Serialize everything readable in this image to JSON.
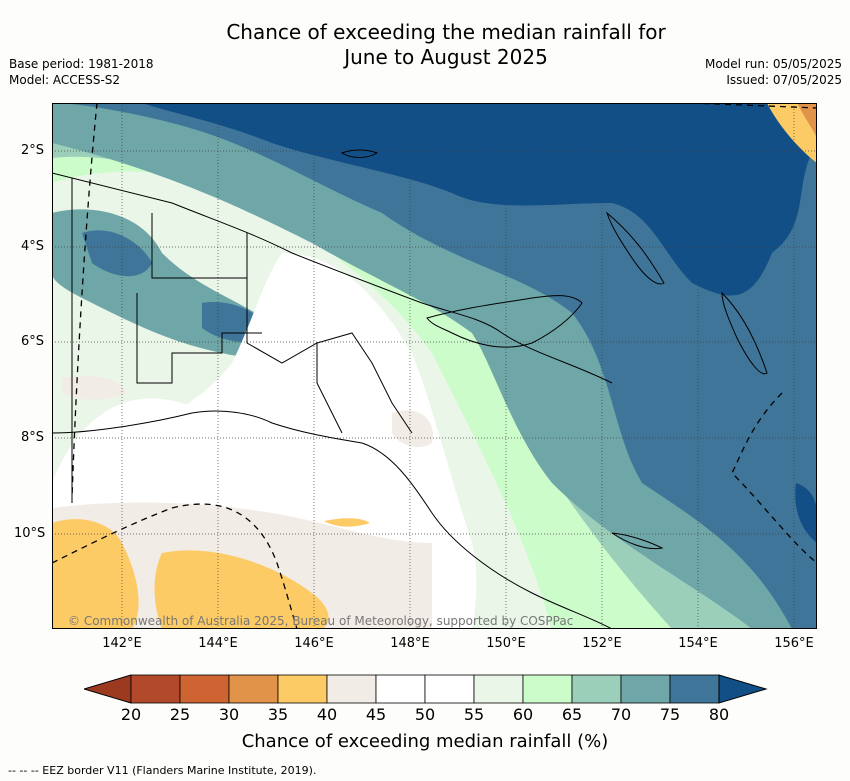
{
  "title_line1": "Chance of exceeding the median rainfall for",
  "title_line2": "June to August 2025",
  "meta_left": {
    "base_period": "Base period: 1981-2018",
    "model": "Model: ACCESS-S2"
  },
  "meta_right": {
    "model_run": "Model run: 05/05/2025",
    "issued": "Issued: 07/05/2025"
  },
  "lat_labels": [
    "2°S",
    "4°S",
    "6°S",
    "8°S",
    "10°S"
  ],
  "lon_labels": [
    "142°E",
    "144°E",
    "146°E",
    "148°E",
    "150°E",
    "152°E",
    "154°E",
    "156°E"
  ],
  "copyright": "© Commonwealth of Australia 2025, Bureau of Meteorology, supported by COSPPac",
  "colorbar": {
    "ticks": [
      "20",
      "25",
      "30",
      "35",
      "40",
      "45",
      "50",
      "55",
      "60",
      "65",
      "70",
      "75",
      "80"
    ],
    "colors": [
      "#9b3a1f",
      "#b2492a",
      "#cd6432",
      "#e2934a",
      "#fdcb66",
      "#f2ece6",
      "#ffffff",
      "#ffffff",
      "#eaf6e7",
      "#cbfcca",
      "#9ccfb9",
      "#6fa6a8",
      "#3f7598",
      "#124f87"
    ],
    "label": "Chance of exceeding median rainfall (%)"
  },
  "eez_legend": "-- --  -- EEZ border V11 (Flanders Marine Institute, 2019)."
}
